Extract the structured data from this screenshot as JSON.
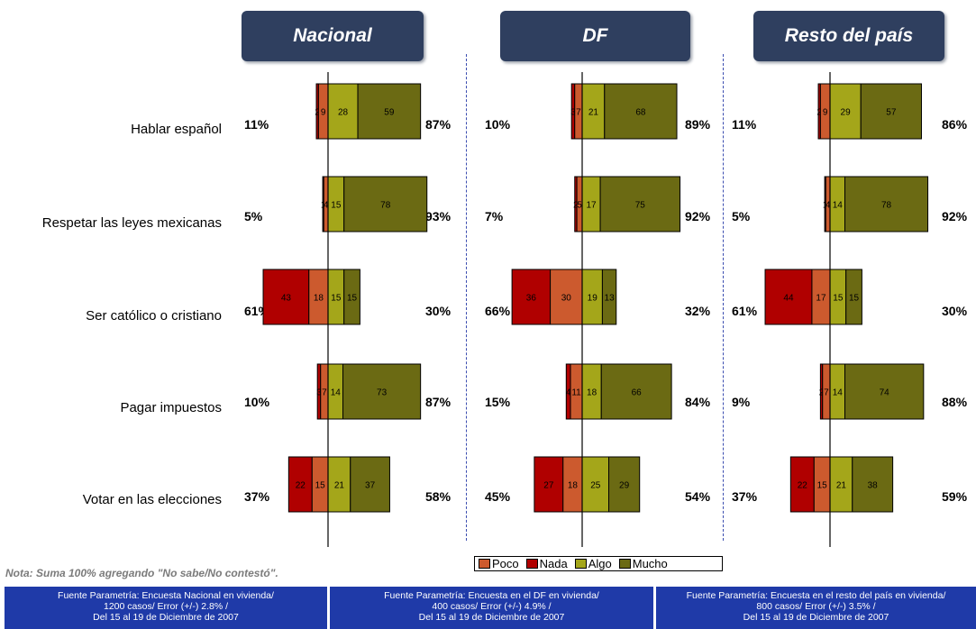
{
  "colors": {
    "poco": "#cc5a2e",
    "nada": "#b00000",
    "algo": "#a4a61a",
    "mucho": "#6b6a13",
    "header": "#2f3f5f",
    "source": "#1f3aa8"
  },
  "chart_data": {
    "type": "bar",
    "stacked": true,
    "orientation": "horizontal",
    "categories": [
      "Hablar español",
      "Respetar las leyes mexicanas",
      "Ser católico o cristiano",
      "Pagar impuestos",
      "Votar en las elecciones"
    ],
    "legend": [
      "Poco",
      "Nada",
      "Algo",
      "Mucho"
    ],
    "panels": [
      {
        "title": "Nacional",
        "nada": [
          2,
          1,
          43,
          3,
          22
        ],
        "poco": [
          9,
          4,
          18,
          7,
          15
        ],
        "algo": [
          28,
          15,
          15,
          14,
          21
        ],
        "mucho": [
          59,
          78,
          15,
          73,
          37
        ],
        "left_pct": [
          "11%",
          "5%",
          "61%",
          "10%",
          "37%"
        ],
        "right_pct": [
          "87%",
          "93%",
          "30%",
          "87%",
          "58%"
        ]
      },
      {
        "title": "DF",
        "nada": [
          3,
          2,
          36,
          4,
          27
        ],
        "poco": [
          7,
          5,
          30,
          11,
          18
        ],
        "algo": [
          21,
          17,
          19,
          18,
          25
        ],
        "mucho": [
          68,
          75,
          13,
          66,
          29
        ],
        "left_pct": [
          "10%",
          "7%",
          "66%",
          "15%",
          "45%"
        ],
        "right_pct": [
          "89%",
          "92%",
          "32%",
          "84%",
          "54%"
        ]
      },
      {
        "title": "Resto del país",
        "nada": [
          2,
          1,
          44,
          2,
          22
        ],
        "poco": [
          9,
          4,
          17,
          7,
          15
        ],
        "algo": [
          29,
          14,
          15,
          14,
          21
        ],
        "mucho": [
          57,
          78,
          15,
          74,
          38
        ],
        "left_pct": [
          "11%",
          "5%",
          "61%",
          "9%",
          "37%"
        ],
        "right_pct": [
          "86%",
          "92%",
          "30%",
          "88%",
          "59%"
        ]
      }
    ]
  },
  "legend_labels": [
    "Poco",
    "Nada",
    "Algo",
    "Mucho"
  ],
  "note": "Nota: Suma 100% agregando \"No sabe/No contestó\".",
  "sources": [
    {
      "line1": "Fuente Parametría: Encuesta Nacional en vivienda/",
      "line2": "1200 casos/ Error (+/-) 2.8% /",
      "line3": "Del 15  al 19  de Diciembre de 2007"
    },
    {
      "line1": "Fuente Parametría: Encuesta en el DF en vivienda/",
      "line2": "400 casos/ Error (+/-) 4.9% /",
      "line3": "Del 15  al 19  de Diciembre de 2007"
    },
    {
      "line1": "Fuente Parametría: Encuesta en el resto del país en vivienda/",
      "line2": "800 casos/ Error (+/-) 3.5% /",
      "line3": "Del 15  al 19  de Diciembre de 2007"
    }
  ]
}
